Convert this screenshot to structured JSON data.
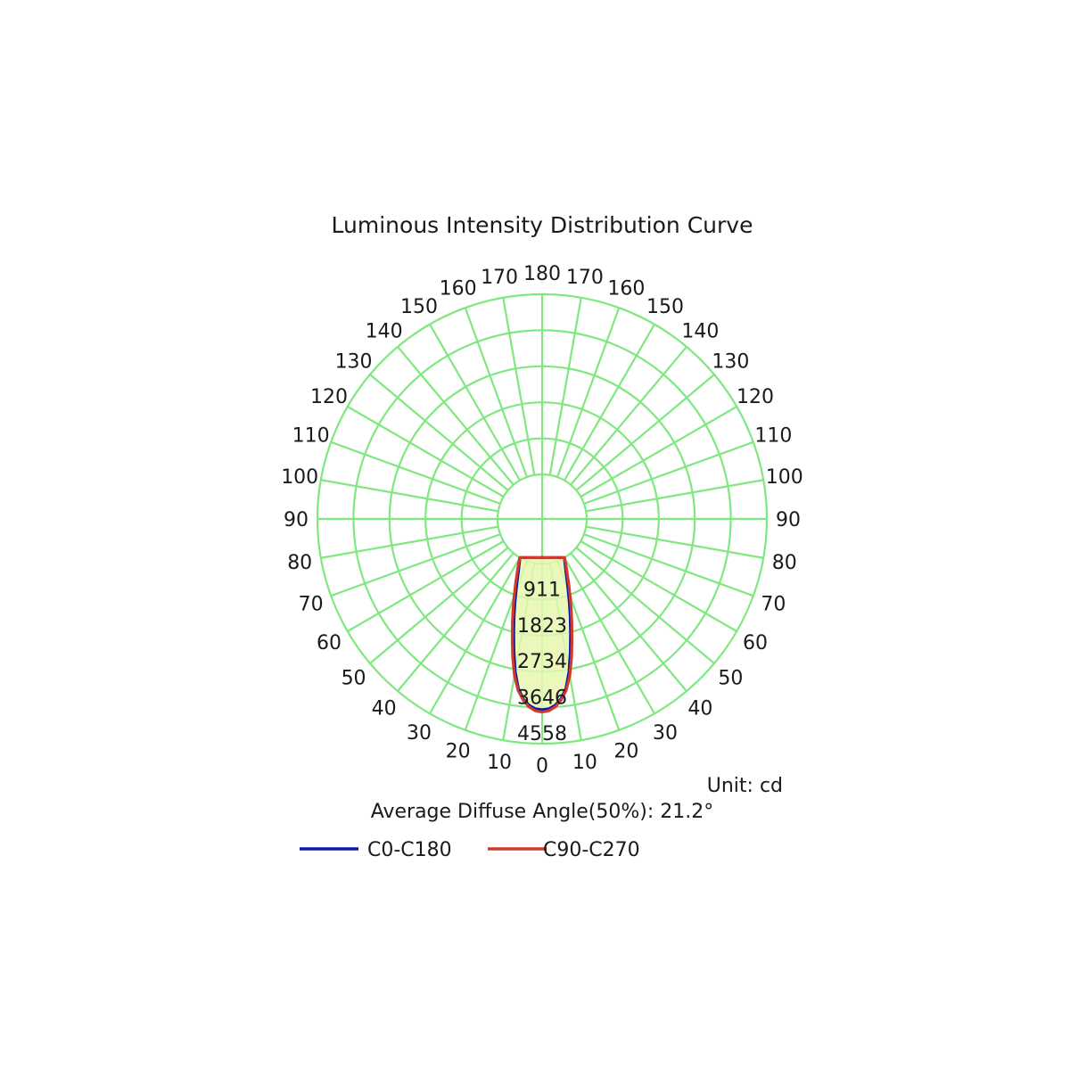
{
  "chart_data": {
    "type": "polar",
    "title": "Luminous Intensity Distribution Curve",
    "unit_label": "Unit: cd",
    "footnote": "Average Diffuse Angle(50%): 21.2°",
    "radial_ticks": [
      "911",
      "1823",
      "2734",
      "3646",
      "4558"
    ],
    "radial_max": 4558,
    "angle_step": 10,
    "angle_labels_left": [
      "180",
      "170",
      "160",
      "150",
      "140",
      "130",
      "120",
      "110",
      "100",
      "90",
      "80",
      "70",
      "60",
      "50",
      "40",
      "30",
      "20",
      "10",
      "0"
    ],
    "angle_labels_right": [
      "170",
      "160",
      "150",
      "140",
      "130",
      "120",
      "110",
      "100",
      "90",
      "80",
      "70",
      "60",
      "50",
      "40",
      "30",
      "20",
      "10"
    ],
    "grid_color": "#7fe87f",
    "series": [
      {
        "name": "C0-C180",
        "color": "#0a1aa8",
        "angles": [
          0,
          2,
          4,
          6,
          8,
          10,
          12,
          14,
          16,
          18,
          20,
          22,
          24,
          26,
          28,
          30
        ],
        "values": [
          3700,
          3680,
          3600,
          3450,
          3200,
          2800,
          2300,
          1850,
          1450,
          1100,
          800,
          560,
          360,
          210,
          90,
          0
        ]
      },
      {
        "name": "C90-C270",
        "color": "#d03a2a",
        "angles": [
          0,
          2,
          4,
          6,
          8,
          10,
          12,
          14,
          16,
          18,
          20,
          22,
          24,
          26,
          28,
          30
        ],
        "values": [
          3760,
          3730,
          3640,
          3480,
          3250,
          2900,
          2450,
          2000,
          1600,
          1250,
          940,
          680,
          460,
          280,
          130,
          0
        ]
      }
    ]
  }
}
